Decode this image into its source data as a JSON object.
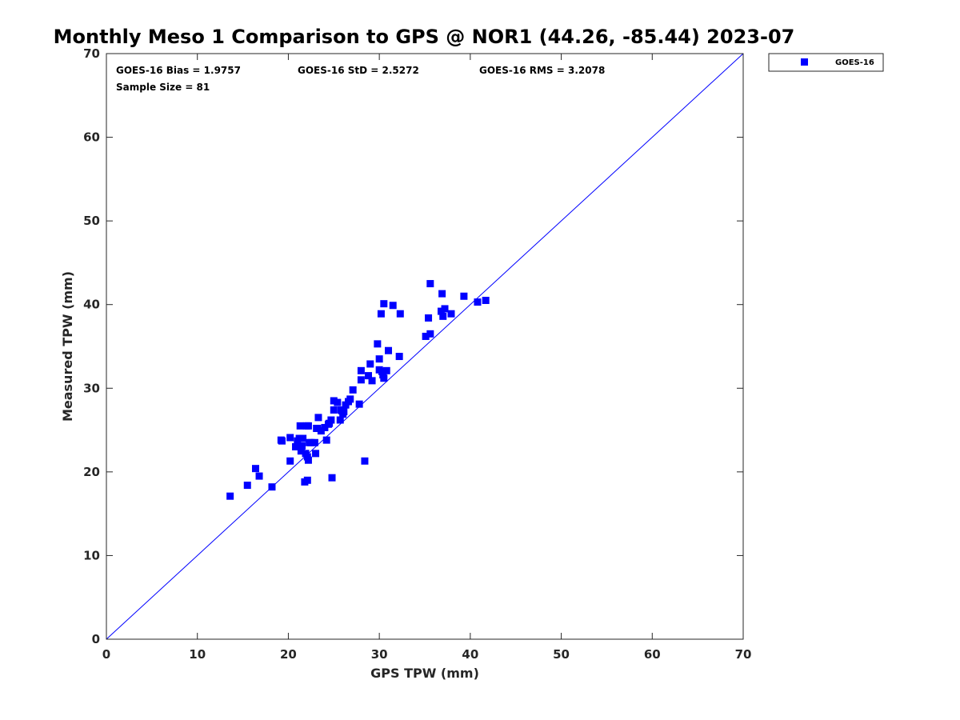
{
  "chart_data": {
    "type": "scatter",
    "title": "Monthly Meso 1 Comparison to GPS @ NOR1 (44.26, -85.44) 2023-07",
    "xlabel": "GPS TPW (mm)",
    "ylabel": "Measured TPW (mm)",
    "xlim": [
      0,
      70
    ],
    "ylim": [
      0,
      70
    ],
    "xticks": [
      "0",
      "10",
      "20",
      "30",
      "40",
      "50",
      "60",
      "70"
    ],
    "yticks": [
      "0",
      "10",
      "20",
      "30",
      "40",
      "50",
      "60",
      "70"
    ],
    "grid": false,
    "legend_position": "outside-top-right",
    "stats": {
      "bias": "GOES-16 Bias = 1.9757",
      "std": "GOES-16 StD = 2.5272",
      "rms": "GOES-16 RMS = 3.2078",
      "sample_size": "Sample Size = 81"
    },
    "reference_line": {
      "from": [
        0,
        0
      ],
      "to": [
        70,
        70
      ],
      "color": "#0000ff"
    },
    "series": [
      {
        "name": "GOES-16",
        "color": "#0000ff",
        "marker": "square",
        "points": [
          [
            13.6,
            17.1
          ],
          [
            15.5,
            18.4
          ],
          [
            16.4,
            20.4
          ],
          [
            16.8,
            19.5
          ],
          [
            18.2,
            18.2
          ],
          [
            19.3,
            23.7
          ],
          [
            20.2,
            21.3
          ],
          [
            20.2,
            24.1
          ],
          [
            20.8,
            23.0
          ],
          [
            21.0,
            23.7
          ],
          [
            21.2,
            24.0
          ],
          [
            21.3,
            25.5
          ],
          [
            21.4,
            22.5
          ],
          [
            21.5,
            23.1
          ],
          [
            21.6,
            24.0
          ],
          [
            21.8,
            18.8
          ],
          [
            21.9,
            22.2
          ],
          [
            22.0,
            25.5
          ],
          [
            22.1,
            19.0
          ],
          [
            22.1,
            21.8
          ],
          [
            22.2,
            25.5
          ],
          [
            22.2,
            21.4
          ],
          [
            22.3,
            23.5
          ],
          [
            22.5,
            23.5
          ],
          [
            22.9,
            23.5
          ],
          [
            23.0,
            22.2
          ],
          [
            23.2,
            25.2
          ],
          [
            23.3,
            26.5
          ],
          [
            23.6,
            24.9
          ],
          [
            24.0,
            25.3
          ],
          [
            24.2,
            23.8
          ],
          [
            24.4,
            25.7
          ],
          [
            24.7,
            26.2
          ],
          [
            24.8,
            19.3
          ],
          [
            25.0,
            27.4
          ],
          [
            25.0,
            28.5
          ],
          [
            25.4,
            28.3
          ],
          [
            25.7,
            26.2
          ],
          [
            25.8,
            27.4
          ],
          [
            26.0,
            26.9
          ],
          [
            26.1,
            27.2
          ],
          [
            26.3,
            28.0
          ],
          [
            26.6,
            28.4
          ],
          [
            26.8,
            28.7
          ],
          [
            27.1,
            29.8
          ],
          [
            27.8,
            28.1
          ],
          [
            28.0,
            32.1
          ],
          [
            28.0,
            31.0
          ],
          [
            28.4,
            21.3
          ],
          [
            28.8,
            31.5
          ],
          [
            29.0,
            32.9
          ],
          [
            29.2,
            30.9
          ],
          [
            29.8,
            35.3
          ],
          [
            30.0,
            32.2
          ],
          [
            30.0,
            33.5
          ],
          [
            30.2,
            38.9
          ],
          [
            30.3,
            32.0
          ],
          [
            30.4,
            31.6
          ],
          [
            30.5,
            40.1
          ],
          [
            30.5,
            31.2
          ],
          [
            30.8,
            32.1
          ],
          [
            31.0,
            34.5
          ],
          [
            31.5,
            39.9
          ],
          [
            32.2,
            33.8
          ],
          [
            32.3,
            38.9
          ],
          [
            35.1,
            36.2
          ],
          [
            35.4,
            38.4
          ],
          [
            35.6,
            42.5
          ],
          [
            35.6,
            36.5
          ],
          [
            36.8,
            39.2
          ],
          [
            36.9,
            41.3
          ],
          [
            37.0,
            38.6
          ],
          [
            37.2,
            39.5
          ],
          [
            37.9,
            38.9
          ],
          [
            39.3,
            41.0
          ],
          [
            40.8,
            40.3
          ],
          [
            41.7,
            40.5
          ],
          [
            19.2,
            23.8
          ],
          [
            23.1,
            25.2
          ],
          [
            25.9,
            27.3
          ],
          [
            24.5,
            25.8
          ]
        ]
      }
    ]
  }
}
